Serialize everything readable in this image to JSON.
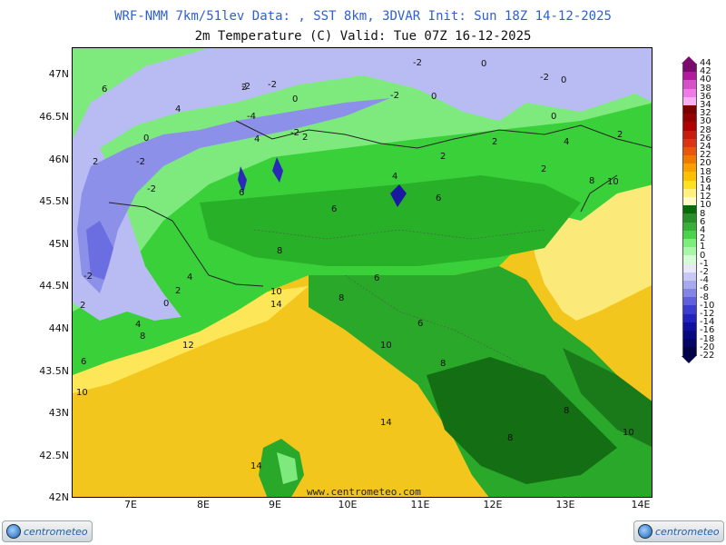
{
  "header": {
    "line1": "WRF-NMM 7km/51lev  Data: , SST 8km, 3DVAR  Init: Sun 18Z 14-12-2025",
    "line2": "2m Temperature (C)  Valid: Tue 07Z 16-12-2025"
  },
  "map": {
    "lat_ticks": [
      "47N",
      "46.5N",
      "46N",
      "45.5N",
      "45N",
      "44.5N",
      "44N",
      "43.5N",
      "43N",
      "42.5N",
      "42N"
    ],
    "lon_ticks": [
      "7E",
      "8E",
      "9E",
      "10E",
      "11E",
      "12E",
      "13E",
      "14E"
    ],
    "watermark": "www.centrometeo.com",
    "contour_labels": [
      "-2",
      "-2",
      "-2",
      "-4",
      "-2",
      "-2",
      "-2",
      "-2",
      "-2",
      "-2",
      "0",
      "0",
      "0",
      "0",
      "0",
      "0",
      "0",
      "2",
      "2",
      "2",
      "2",
      "2",
      "2",
      "2",
      "2",
      "2",
      "4",
      "4",
      "4",
      "4",
      "4",
      "4",
      "6",
      "6",
      "6",
      "6",
      "6",
      "6",
      "6",
      "8",
      "8",
      "8",
      "8",
      "8",
      "8",
      "8",
      "10",
      "10",
      "10",
      "10",
      "10",
      "12",
      "14",
      "14",
      "14"
    ]
  },
  "legend": {
    "units": "C",
    "levels": [
      "44",
      "42",
      "40",
      "38",
      "36",
      "34",
      "32",
      "30",
      "28",
      "26",
      "24",
      "22",
      "20",
      "18",
      "16",
      "14",
      "12",
      "10",
      "8",
      "6",
      "4",
      "2",
      "1",
      "0",
      "-1",
      "-2",
      "-4",
      "-6",
      "-8",
      "-10",
      "-12",
      "-14",
      "-16",
      "-18",
      "-20",
      "-22"
    ],
    "colors": [
      "#7a0a6e",
      "#b21a9e",
      "#d650c8",
      "#f07ae8",
      "#f9b0f2",
      "#7a0000",
      "#950000",
      "#b00000",
      "#c81c0c",
      "#dc3410",
      "#e8560c",
      "#f07a00",
      "#f7a000",
      "#fcc000",
      "#fde020",
      "#fff080",
      "#fffac8",
      "#0a6a0a",
      "#2a8f2a",
      "#38b038",
      "#4ad24a",
      "#7bef7b",
      "#a8f7a8",
      "#d6fcd6",
      "#e8e8f8",
      "#c8c8f4",
      "#a8a8ee",
      "#8484e6",
      "#6060dc",
      "#3c3cd0",
      "#2222bc",
      "#1010a0",
      "#080880",
      "#050566",
      "#03034a"
    ]
  },
  "logos": {
    "left": "centrometeo",
    "right": "centrometeo"
  }
}
